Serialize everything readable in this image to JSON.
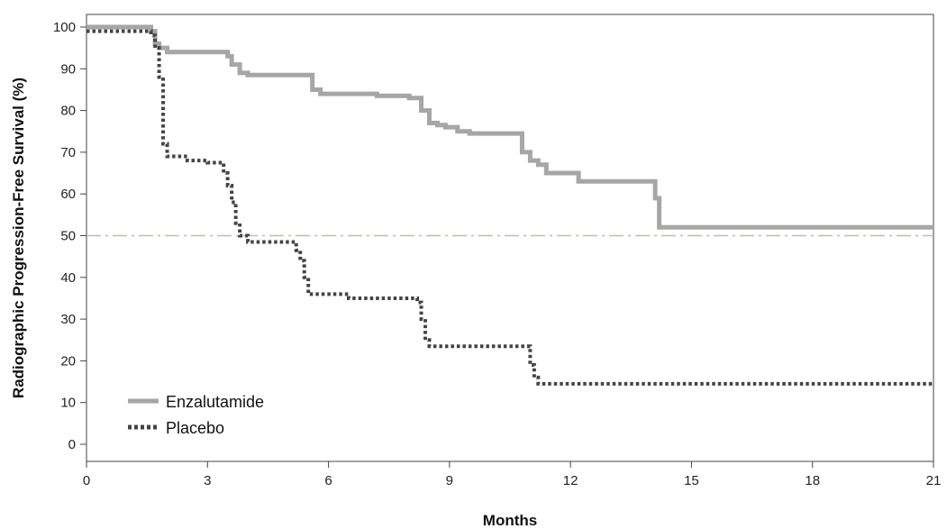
{
  "chart_data": {
    "type": "line",
    "subtype": "kaplan-meier step curves",
    "title": "",
    "xlabel": "Months",
    "ylabel": "Radiographic Progression-Free Survival (%)",
    "xlim": [
      0,
      21
    ],
    "ylim": [
      0,
      100
    ],
    "xticks": [
      0,
      3,
      6,
      9,
      12,
      15,
      18,
      21
    ],
    "yticks": [
      0,
      10,
      20,
      30,
      40,
      50,
      60,
      70,
      80,
      90,
      100
    ],
    "reference_line": {
      "y": 50,
      "style": "dash-dot",
      "color": "#bdbdb0"
    },
    "grid": false,
    "legend_position": "bottom-left",
    "series": [
      {
        "name": "Enzalutamide",
        "style": "solid",
        "color": "#a6a6a6",
        "x": [
          0,
          1.6,
          1.7,
          1.8,
          2.0,
          3.0,
          3.5,
          3.6,
          3.8,
          4.0,
          5.5,
          5.6,
          5.8,
          7.2,
          8.0,
          8.3,
          8.5,
          8.7,
          8.9,
          9.2,
          9.5,
          10.5,
          10.8,
          11.0,
          11.2,
          11.4,
          11.6,
          12.2,
          12.5,
          13.8,
          14.1,
          14.2,
          21
        ],
        "y": [
          100,
          99,
          96,
          95,
          94,
          94,
          93,
          91,
          89,
          88.5,
          88.5,
          85,
          84,
          83.5,
          83,
          80,
          77,
          76.5,
          76,
          75,
          74.5,
          74.5,
          70,
          68,
          67,
          65,
          65,
          63,
          63,
          63,
          59,
          52,
          52
        ]
      },
      {
        "name": "Placebo",
        "style": "dotted",
        "color": "#444444",
        "x": [
          0,
          1.6,
          1.7,
          1.8,
          1.9,
          2.0,
          2.5,
          3.0,
          3.4,
          3.5,
          3.6,
          3.7,
          3.8,
          4.0,
          5.2,
          5.3,
          5.4,
          5.5,
          6.5,
          7.5,
          8.2,
          8.3,
          8.4,
          8.5,
          10.5,
          11.0,
          11.1,
          11.2,
          21
        ],
        "y": [
          99,
          98,
          95,
          88,
          72,
          69,
          68,
          67.5,
          65,
          62,
          58,
          53,
          50,
          48.5,
          46.5,
          44,
          40,
          36,
          35,
          35,
          34,
          30,
          25,
          23.5,
          23.5,
          19,
          16,
          14.5,
          14.5
        ]
      }
    ]
  }
}
